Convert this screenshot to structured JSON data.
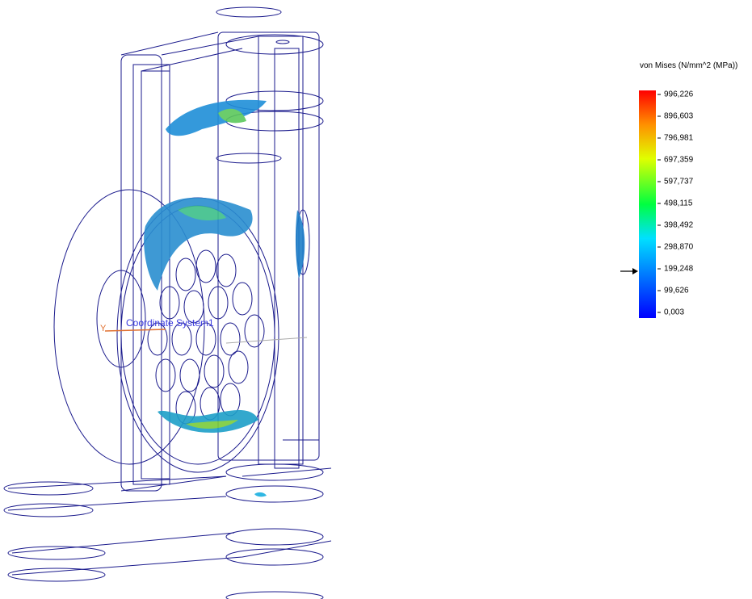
{
  "view": {
    "coordinate_label": "Coordinate System1",
    "axis_label": "Y"
  },
  "legend": {
    "title": "von Mises (N/mm^2 (MPa))",
    "labels": [
      "996,226",
      "896,603",
      "796,981",
      "697,359",
      "597,737",
      "498,115",
      "398,492",
      "298,870",
      "199,248",
      "99,626",
      "0,003"
    ]
  }
}
